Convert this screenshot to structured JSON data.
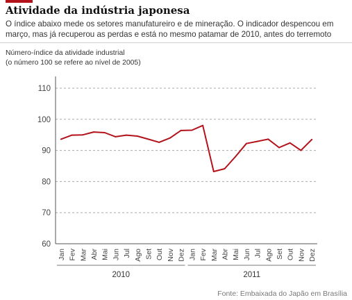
{
  "title": "Atividade da indústria japonesa",
  "subtitle": "O índice abaixo mede os setores manufatureiro e de mineração. O indicador despencou em março, mas já recuperou as perdas e está no mesmo patamar de 2010, antes do terremoto",
  "source": "Fonte: Embaixada do Japão em Brasília",
  "colors": {
    "accent": "#b3121b",
    "line": "#b3121b",
    "axis": "#555555",
    "grid": "#aaaaaa"
  },
  "chart_data": {
    "type": "line",
    "ylabel_lines": [
      "Número-índice da atividade industrial",
      "(o número 100 se refere ao nível de 2005)"
    ],
    "yticks": [
      60,
      70,
      80,
      90,
      100,
      110
    ],
    "ylim": [
      60,
      112
    ],
    "grid": "dashed horizontal",
    "categories": [
      "Jan",
      "Fev",
      "Mar",
      "Abr",
      "Mai",
      "Jun",
      "Jul",
      "Ago",
      "Set",
      "Out",
      "Nov",
      "Dez",
      "Jan",
      "Fev",
      "Mar",
      "Abr",
      "Mai",
      "Jun",
      "Jul",
      "Ago",
      "Set",
      "Out",
      "Nov",
      "Dez"
    ],
    "groups": [
      {
        "label": "2010",
        "start": 0,
        "end": 11
      },
      {
        "label": "2011",
        "start": 12,
        "end": 23
      }
    ],
    "series": [
      {
        "values": [
          93.6,
          94.9,
          95.0,
          95.9,
          95.7,
          94.4,
          94.9,
          94.6,
          93.6,
          92.6,
          94.0,
          96.4,
          96.5,
          98.0,
          83.2,
          84.1,
          88.0,
          92.2,
          92.9,
          93.6,
          90.9,
          92.4,
          90.0,
          93.5
        ]
      }
    ]
  }
}
